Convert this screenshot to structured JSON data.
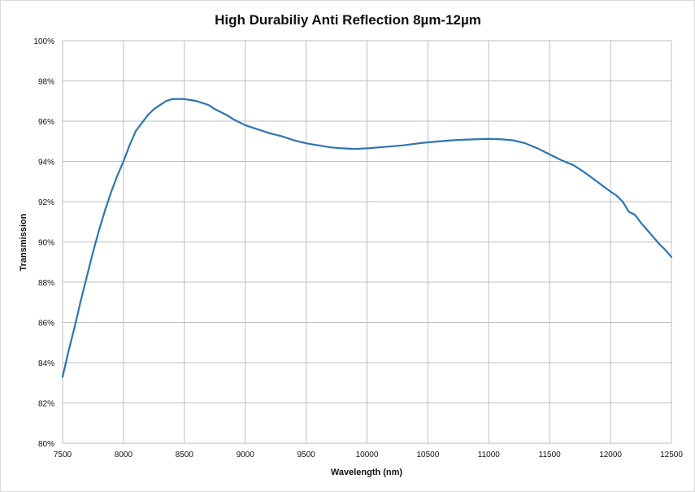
{
  "chart_data": {
    "type": "line",
    "title": "High Durabiliy Anti Reflection 8µm-12µm",
    "xlabel": "Wavelength (nm)",
    "ylabel": "Transmission",
    "xlim": [
      7500,
      12500
    ],
    "ylim": [
      80,
      100
    ],
    "x_ticks": [
      7500,
      8000,
      8500,
      9000,
      9500,
      10000,
      10500,
      11000,
      11500,
      12000,
      12500
    ],
    "x_tick_labels": [
      "7500",
      "8000",
      "8500",
      "9000",
      "9500",
      "10000",
      "10500",
      "11000",
      "11500",
      "12000",
      "12500"
    ],
    "y_ticks": [
      80,
      82,
      84,
      86,
      88,
      90,
      92,
      94,
      96,
      98,
      100
    ],
    "y_tick_labels": [
      "80%",
      "82%",
      "84%",
      "86%",
      "88%",
      "90%",
      "92%",
      "94%",
      "96%",
      "98%",
      "100%"
    ],
    "grid": true,
    "legend": "none",
    "line_color": "#2e75b6",
    "grid_color": "#bfbfbf",
    "series": [
      {
        "x": [
          7500,
          7550,
          7600,
          7650,
          7700,
          7750,
          7800,
          7850,
          7900,
          7950,
          8000,
          8050,
          8100,
          8150,
          8200,
          8250,
          8300,
          8350,
          8400,
          8450,
          8500,
          8550,
          8600,
          8650,
          8700,
          8750,
          8800,
          8850,
          8900,
          8950,
          9000,
          9100,
          9200,
          9300,
          9400,
          9500,
          9600,
          9700,
          9800,
          9900,
          10000,
          10100,
          10200,
          10300,
          10400,
          10500,
          10600,
          10700,
          10800,
          10900,
          11000,
          11100,
          11200,
          11300,
          11400,
          11500,
          11600,
          11700,
          11800,
          11900,
          12000,
          12050,
          12100,
          12150,
          12200,
          12250,
          12300,
          12350,
          12400,
          12450,
          12500
        ],
        "values": [
          83.3,
          84.6,
          85.8,
          87.1,
          88.3,
          89.5,
          90.6,
          91.6,
          92.5,
          93.3,
          94.0,
          94.8,
          95.5,
          95.9,
          96.3,
          96.6,
          96.8,
          97.0,
          97.1,
          97.1,
          97.1,
          97.05,
          97.0,
          96.9,
          96.8,
          96.6,
          96.45,
          96.3,
          96.1,
          95.95,
          95.8,
          95.6,
          95.4,
          95.25,
          95.05,
          94.9,
          94.8,
          94.7,
          94.65,
          94.62,
          94.65,
          94.7,
          94.75,
          94.8,
          94.88,
          94.95,
          95.0,
          95.05,
          95.08,
          95.1,
          95.12,
          95.1,
          95.05,
          94.9,
          94.65,
          94.35,
          94.05,
          93.8,
          93.4,
          92.95,
          92.5,
          92.3,
          92.0,
          91.5,
          91.35,
          90.95,
          90.6,
          90.25,
          89.9,
          89.6,
          89.25
        ]
      }
    ]
  }
}
